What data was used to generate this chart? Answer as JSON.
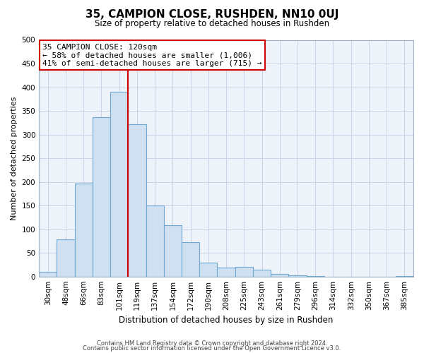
{
  "title": "35, CAMPION CLOSE, RUSHDEN, NN10 0UJ",
  "subtitle": "Size of property relative to detached houses in Rushden",
  "xlabel": "Distribution of detached houses by size in Rushden",
  "ylabel": "Number of detached properties",
  "bar_labels": [
    "30sqm",
    "48sqm",
    "66sqm",
    "83sqm",
    "101sqm",
    "119sqm",
    "137sqm",
    "154sqm",
    "172sqm",
    "190sqm",
    "208sqm",
    "225sqm",
    "243sqm",
    "261sqm",
    "279sqm",
    "296sqm",
    "314sqm",
    "332sqm",
    "350sqm",
    "367sqm",
    "385sqm"
  ],
  "bar_values": [
    10,
    78,
    196,
    336,
    390,
    322,
    150,
    108,
    73,
    30,
    19,
    21,
    14,
    5,
    2,
    1,
    0,
    0,
    0,
    0,
    1
  ],
  "bar_color": "#cfe0f0",
  "bar_edge_color": "#6fa8d0",
  "vline_x": 4.5,
  "vline_color": "#cc0000",
  "annotation_box_color": "#ffffff",
  "annotation_box_edge": "#cc0000",
  "annotation_text_line1": "35 CAMPION CLOSE: 120sqm",
  "annotation_text_line2": "← 58% of detached houses are smaller (1,006)",
  "annotation_text_line3": "41% of semi-detached houses are larger (715) →",
  "ylim": [
    0,
    500
  ],
  "yticks": [
    0,
    50,
    100,
    150,
    200,
    250,
    300,
    350,
    400,
    450,
    500
  ],
  "grid_color": "#c8d4e8",
  "plot_bg_color": "#eef3fa",
  "fig_bg_color": "#ffffff",
  "footer_line1": "Contains HM Land Registry data © Crown copyright and database right 2024.",
  "footer_line2": "Contains public sector information licensed under the Open Government Licence v3.0."
}
